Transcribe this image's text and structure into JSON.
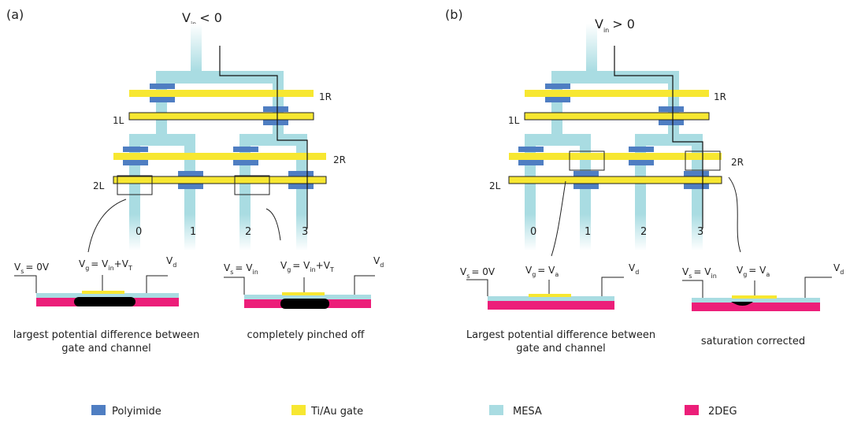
{
  "panels": [
    {
      "label": "(a)",
      "vin_main": "V",
      "vin_sub": "in",
      "vin_rel": "< 0",
      "gates": [
        "1R",
        "1L",
        "2R",
        "2L"
      ],
      "channels": [
        "0",
        "1",
        "2",
        "3"
      ],
      "sections": [
        {
          "vs_main": "V",
          "vs_sub": "s",
          "vs_val": "= 0V",
          "vg_main": "V",
          "vg_sub": "g",
          "vg_eq": "= V",
          "vg_eq_sub": "in",
          "vg_plus": "+V",
          "vg_plus_sub": "T",
          "vd_main": "V",
          "vd_sub": "d",
          "caption_1": "largest potential difference between",
          "caption_2": "gate and channel"
        },
        {
          "vs_main": "V",
          "vs_sub": "s",
          "vs_val": "= V",
          "vs_val_sub": "in",
          "vg_main": "V",
          "vg_sub": "g",
          "vg_eq": "= V",
          "vg_eq_sub": "in",
          "vg_plus": "+V",
          "vg_plus_sub": "T",
          "vd_main": "V",
          "vd_sub": "d",
          "caption_1": "completely pinched off"
        }
      ]
    },
    {
      "label": "(b)",
      "vin_main": "V",
      "vin_sub": "in",
      "vin_rel": "> 0",
      "gates": [
        "1R",
        "1L",
        "2R",
        "2L"
      ],
      "channels": [
        "0",
        "1",
        "2",
        "3"
      ],
      "sections": [
        {
          "vs_main": "V",
          "vs_sub": "s",
          "vs_val": "= 0V",
          "vg_main": "V",
          "vg_sub": "g",
          "vg_eq": "= V",
          "vg_eq_sub": "a",
          "vd_main": "V",
          "vd_sub": "d",
          "caption_1": "Largest potential difference between",
          "caption_2": "gate and channel"
        },
        {
          "vs_main": "V",
          "vs_sub": "s",
          "vs_val": "= V",
          "vs_val_sub": "in",
          "vg_main": "V",
          "vg_sub": "g",
          "vg_eq": "= V",
          "vg_eq_sub": "a",
          "vd_main": "V",
          "vd_sub": "d",
          "caption_1": "saturation corrected"
        }
      ]
    }
  ],
  "legend": [
    {
      "label": "Polyimide",
      "color": "#4f7ec2"
    },
    {
      "label": "Ti/Au gate",
      "color": "#f7e731"
    },
    {
      "label": "MESA",
      "color": "#a9dce2"
    },
    {
      "label": "2DEG",
      "color": "#ec1e79"
    }
  ],
  "colors": {
    "mesa": "#a9dce2",
    "gate": "#f7e731",
    "poly": "#4f7ec2",
    "deg": "#ec1e79",
    "depletion": "#000000"
  }
}
